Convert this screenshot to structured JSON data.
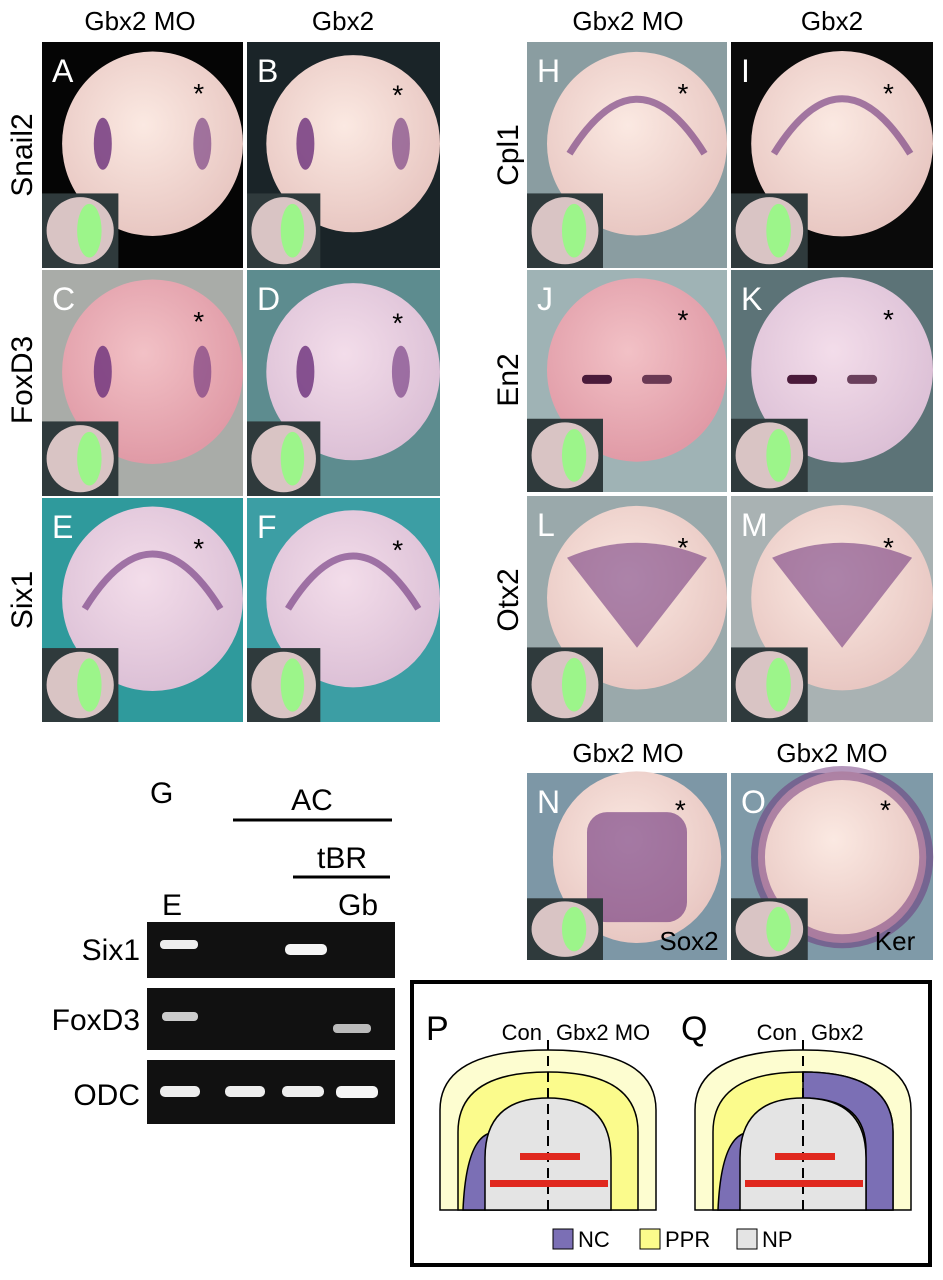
{
  "left_columns": [
    "Gbx2 MO",
    "Gbx2"
  ],
  "right_columns": [
    "Gbx2 MO",
    "Gbx2"
  ],
  "row_labels_left": [
    "Snail2",
    "FoxD3",
    "Six1"
  ],
  "row_labels_right": [
    "Cpl1",
    "En2",
    "Otx2"
  ],
  "asterisk": "*",
  "panels": [
    {
      "letter": "A"
    },
    {
      "letter": "B"
    },
    {
      "letter": "C"
    },
    {
      "letter": "D"
    },
    {
      "letter": "E"
    },
    {
      "letter": "F"
    },
    {
      "letter": "H"
    },
    {
      "letter": "I"
    },
    {
      "letter": "J"
    },
    {
      "letter": "K"
    },
    {
      "letter": "L"
    },
    {
      "letter": "M"
    },
    {
      "letter": "N",
      "caption": "Sox2"
    },
    {
      "letter": "O",
      "caption": "Ker"
    }
  ],
  "bottom_columns": [
    "Gbx2 MO",
    "Gbx2 MO"
  ],
  "gel": {
    "letter": "G",
    "group": "AC",
    "subgroup": "tBR",
    "lane_labels": [
      "E",
      "Gb"
    ],
    "rows": [
      "Six1",
      "FoxD3",
      "ODC"
    ]
  },
  "schematic": {
    "panels": [
      {
        "letter": "P",
        "left": "Con",
        "right": "Gbx2 MO"
      },
      {
        "letter": "Q",
        "left": "Con",
        "right": "Gbx2"
      }
    ],
    "legend": [
      "NC",
      "PPR",
      "NP"
    ]
  }
}
